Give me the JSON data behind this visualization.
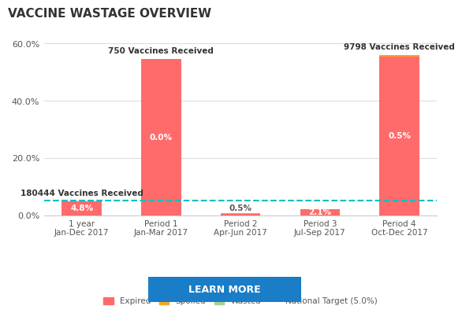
{
  "title": "VACCINE WASTAGE OVERVIEW",
  "categories": [
    "1 year\nJan-Dec 2017",
    "Period 1\nJan-Mar 2017",
    "Period 2\nApr-Jun 2017",
    "Period 3\nJul-Sep 2017",
    "Period 4\nOct-Dec 2017"
  ],
  "expired_values": [
    4.8,
    54.7,
    0.5,
    2.1,
    55.4
  ],
  "spoiled_values": [
    0.0,
    0.0,
    0.1,
    0.0,
    0.5
  ],
  "wasted_values": [
    0.0,
    0.0,
    0.1,
    0.0,
    0.0
  ],
  "bar_labels": [
    "4.8%",
    "0.0%",
    "0.5%",
    "2.1%",
    "0.5%"
  ],
  "vaccines_received_labels": [
    "180444 Vaccines Received",
    "750 Vaccines Received",
    null,
    null,
    "9798 Vaccines Received"
  ],
  "vaccines_label_positions": [
    0,
    1,
    null,
    null,
    4
  ],
  "national_target": 5.0,
  "ylim": [
    0,
    65
  ],
  "yticks": [
    0.0,
    20.0,
    40.0,
    60.0
  ],
  "ytick_labels": [
    "0.0%",
    "20.0%",
    "40.0%",
    "60.0%"
  ],
  "color_expired": "#FF6B6B",
  "color_spoiled": "#F5A623",
  "color_wasted": "#A8D08D",
  "color_national_target": "#00BFBF",
  "background_color": "#FFFFFF",
  "title_fontsize": 11,
  "bar_width": 0.5,
  "button_text": "LEARN MORE",
  "button_color": "#1A7DC8",
  "button_text_color": "#FFFFFF"
}
